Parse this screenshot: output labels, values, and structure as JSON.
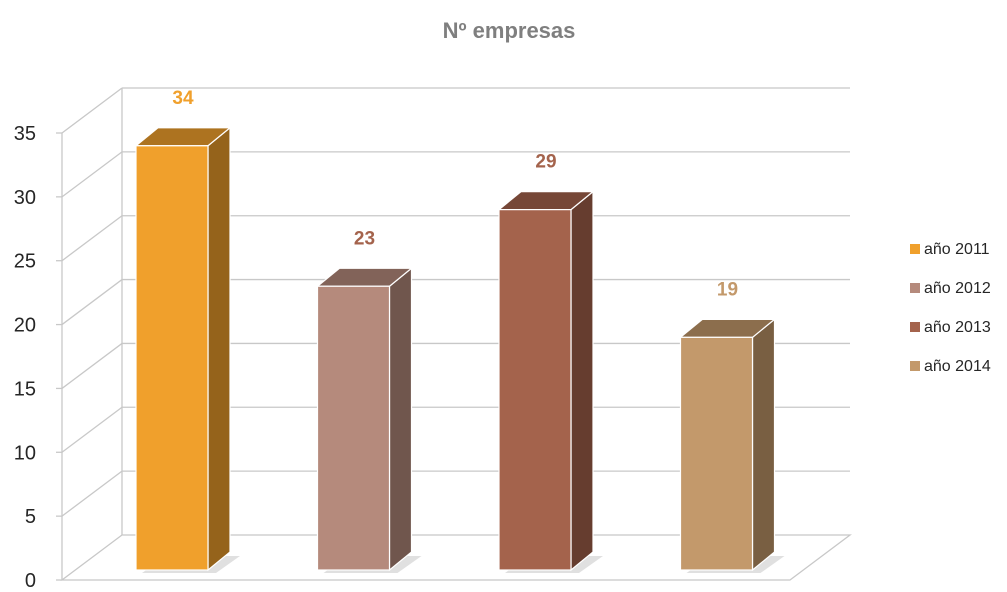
{
  "chart_data": {
    "type": "bar",
    "title": "Nº empresas",
    "categories": [
      ""
    ],
    "series": [
      {
        "name": "año 2011",
        "values": [
          34
        ],
        "color": "#F0A02C"
      },
      {
        "name": "año 2012",
        "values": [
          23
        ],
        "color": "#B58A7C"
      },
      {
        "name": "año 2013",
        "values": [
          29
        ],
        "color": "#A4634C"
      },
      {
        "name": "año 2014",
        "values": [
          19
        ],
        "color": "#C3996B"
      }
    ],
    "data_label_colors": [
      "#F0A02C",
      "#A4634C",
      "#A4634C",
      "#C3996B"
    ],
    "xlabel": "",
    "ylabel": "",
    "ylim": [
      0,
      35
    ],
    "yticks": [
      "0",
      "5",
      "10",
      "15",
      "20",
      "25",
      "30",
      "35"
    ],
    "grid": true,
    "three_d": true,
    "legend_position": "right"
  }
}
